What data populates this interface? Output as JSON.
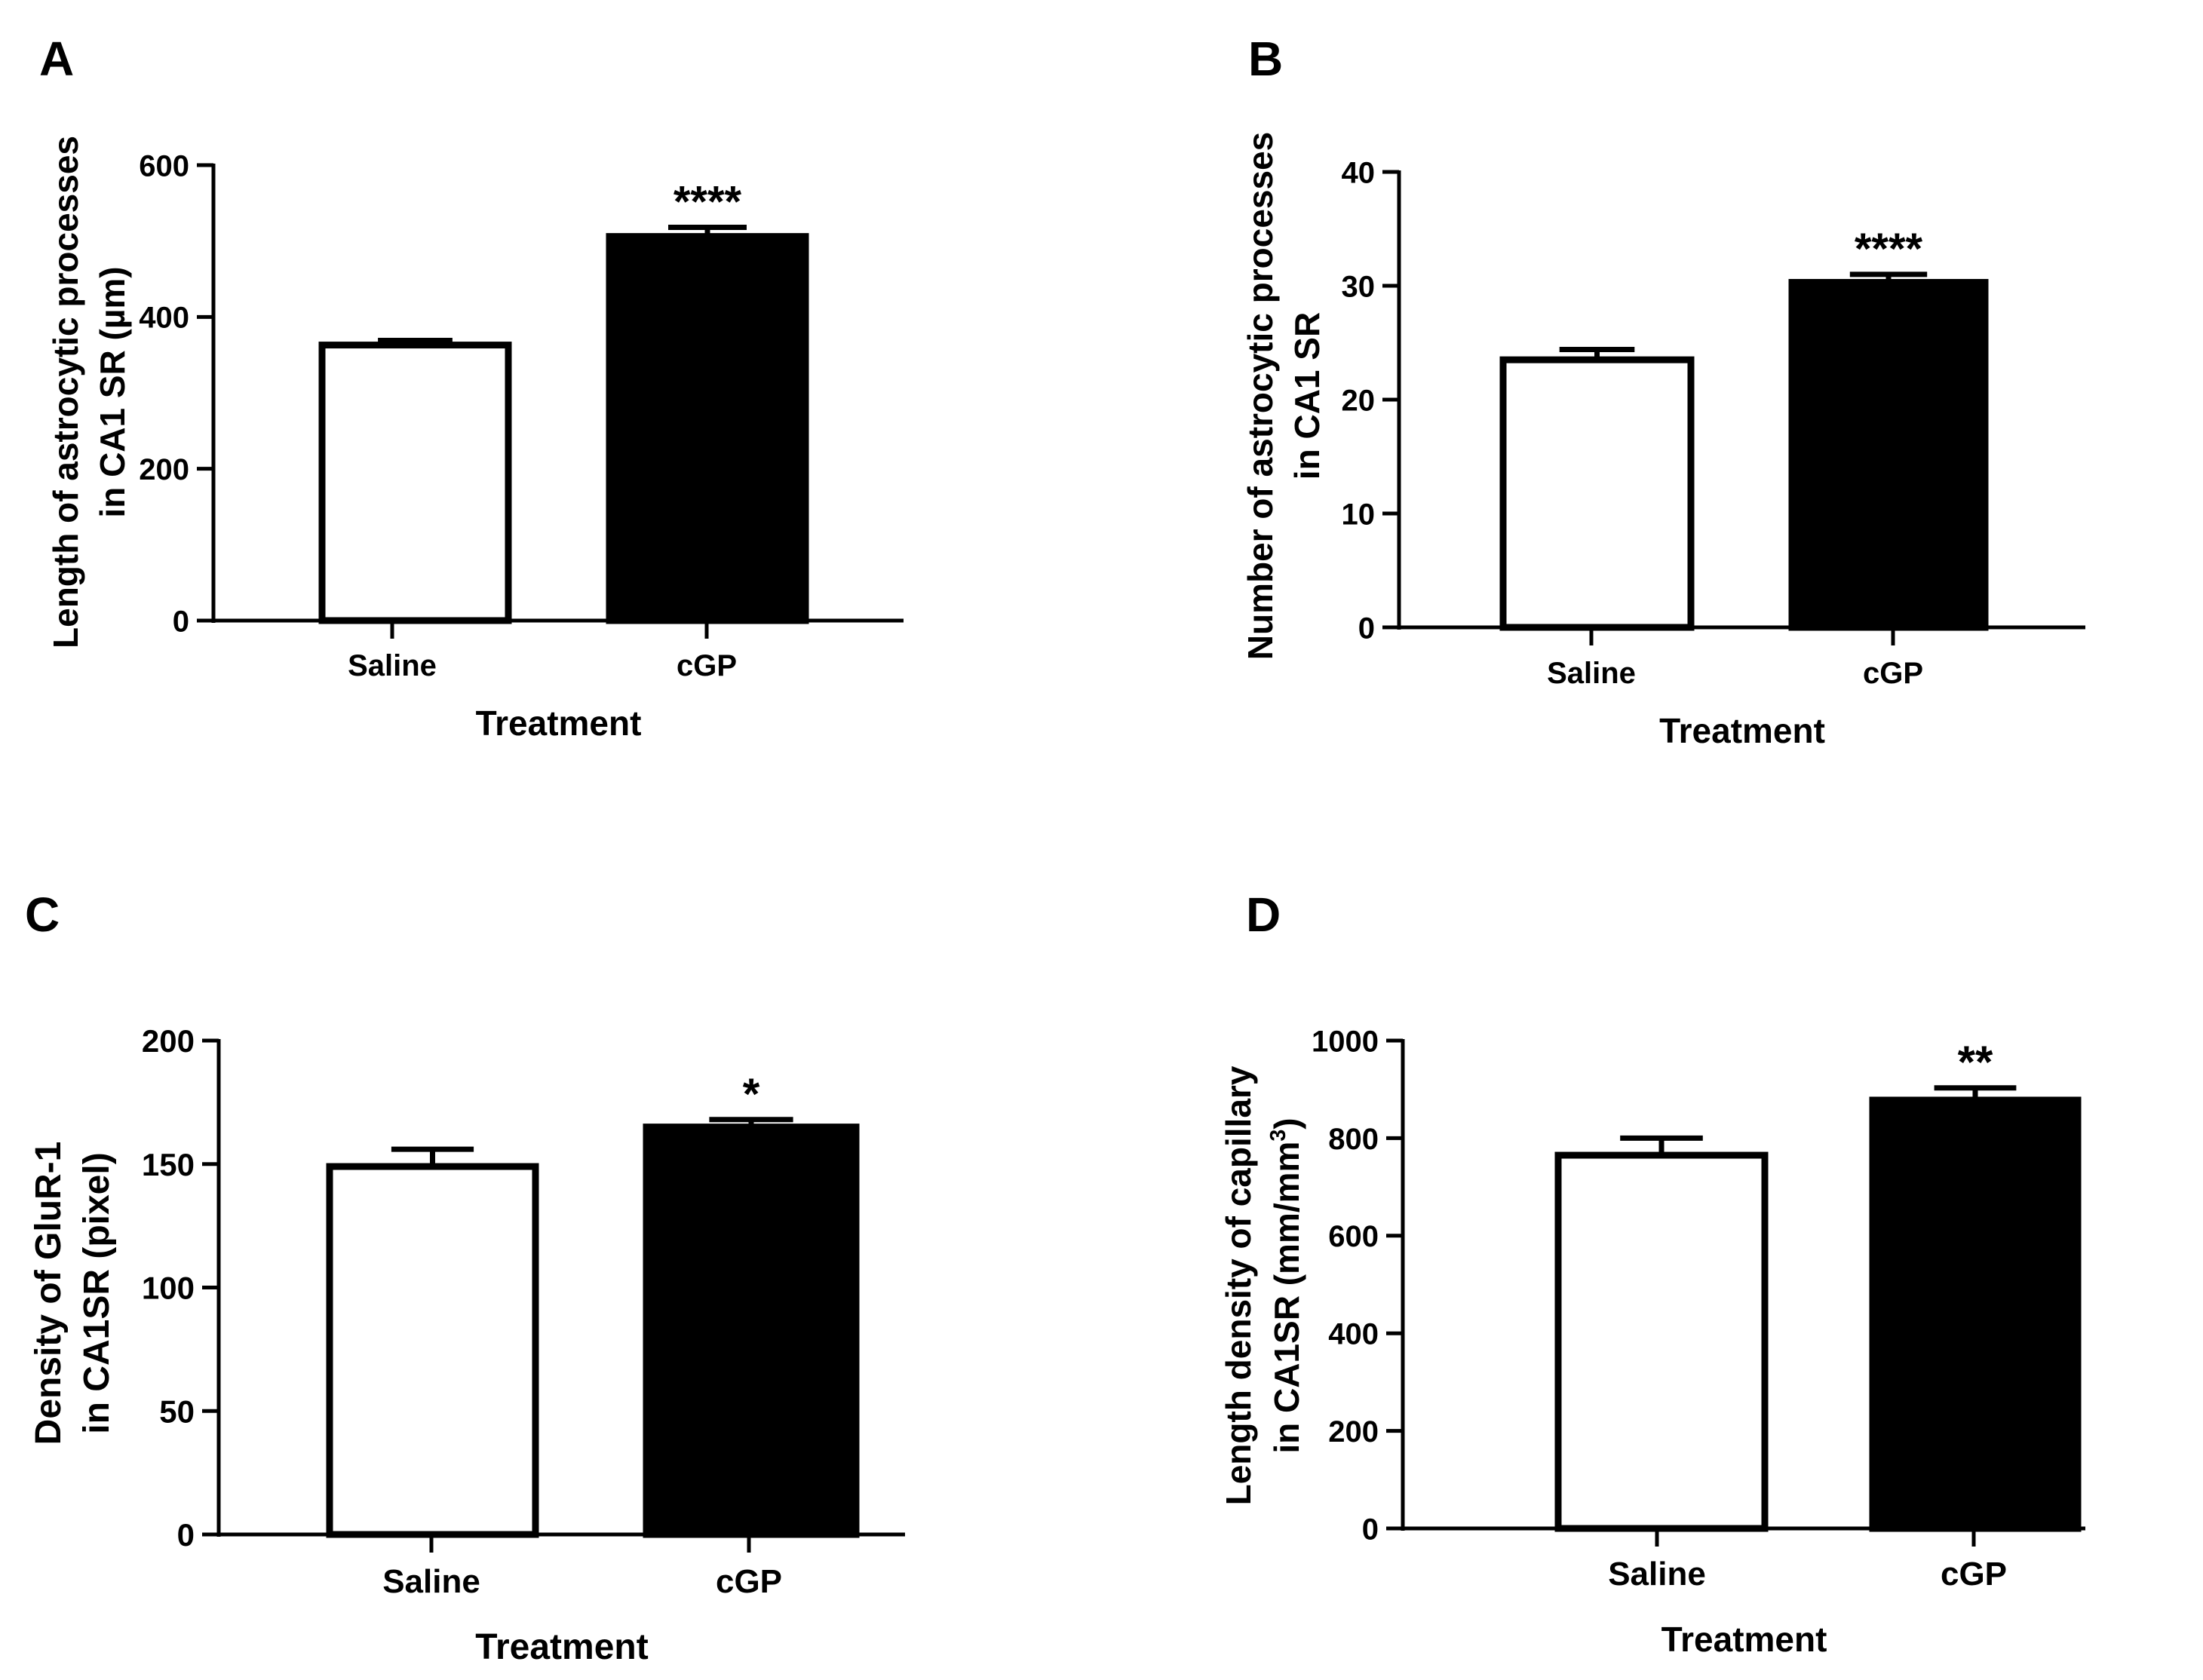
{
  "chart_data": [
    {
      "panel": "A",
      "type": "bar",
      "categories": [
        "Saline",
        "cGP"
      ],
      "values": [
        363,
        506
      ],
      "errors": [
        6,
        12
      ],
      "significance": [
        "",
        "****"
      ],
      "xlabel": "Treatment",
      "ylabel": [
        "Length of astrocytic processes",
        "in CA1 SR (µm)"
      ],
      "ylim": [
        0,
        600
      ],
      "yticks": [
        0,
        200,
        400,
        600
      ],
      "fills": [
        "#ffffff",
        "#000000"
      ]
    },
    {
      "panel": "B",
      "type": "bar",
      "categories": [
        "Saline",
        "cGP"
      ],
      "values": [
        23.5,
        30.3
      ],
      "errors": [
        0.9,
        0.7
      ],
      "significance": [
        "",
        "****"
      ],
      "xlabel": "Treatment",
      "ylabel": [
        "Number of astrocytic processes",
        "in CA1 SR"
      ],
      "ylim": [
        0,
        40
      ],
      "yticks": [
        0,
        10,
        20,
        30,
        40
      ],
      "fills": [
        "#ffffff",
        "#000000"
      ]
    },
    {
      "panel": "C",
      "type": "bar",
      "categories": [
        "Saline",
        "cGP"
      ],
      "values": [
        149,
        165
      ],
      "errors": [
        7,
        3
      ],
      "significance": [
        "",
        "*"
      ],
      "xlabel": "Treatment",
      "ylabel": [
        "Density of GluR-1",
        "in CA1SR (pixel)"
      ],
      "ylim": [
        0,
        200
      ],
      "yticks": [
        0,
        50,
        100,
        150,
        200
      ],
      "fills": [
        "#ffffff",
        "#000000"
      ]
    },
    {
      "panel": "D",
      "type": "bar",
      "categories": [
        "Saline",
        "cGP"
      ],
      "values": [
        765,
        878
      ],
      "errors": [
        35,
        25
      ],
      "significance": [
        "",
        "**"
      ],
      "xlabel": "Treatment",
      "ylabel": [
        "Length density of capillary",
        "in CA1SR (mm/mm",
        "3",
        ")"
      ],
      "ylim": [
        0,
        1000
      ],
      "yticks": [
        0,
        200,
        400,
        600,
        800,
        1000
      ],
      "fills": [
        "#ffffff",
        "#000000"
      ]
    }
  ]
}
